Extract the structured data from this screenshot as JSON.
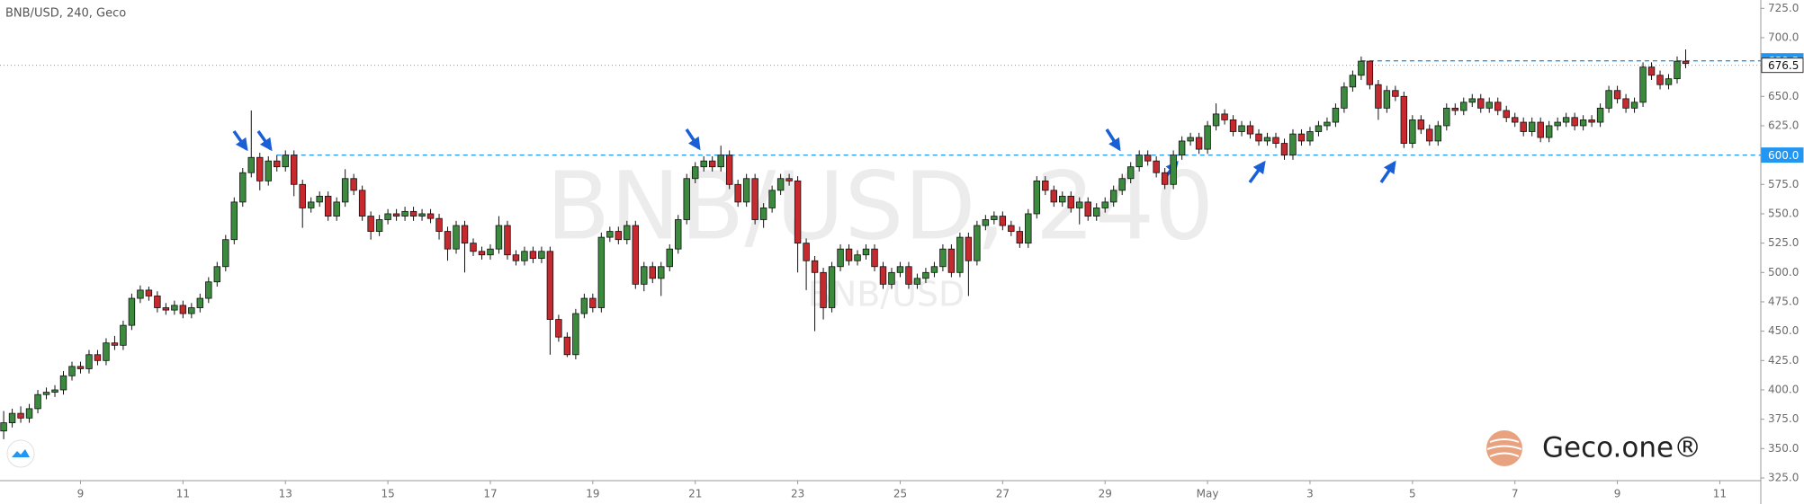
{
  "chart_data": {
    "type": "candlestick",
    "title": "BNB/USD, 240, Geco",
    "watermark": "BNB/USD, 240",
    "watermark_sub": "BNB/USD",
    "brand": "Geco.one®",
    "up_color": "#3b8a3e",
    "down_color": "#c62a2f",
    "level_color": "#2196f3",
    "xlim": [
      -0.43,
      205.8
    ],
    "ylim": [
      322.7,
      732.1
    ],
    "yticks": [
      {
        "value": 325,
        "label": "325.0"
      },
      {
        "value": 350,
        "label": "350.0"
      },
      {
        "value": 375,
        "label": "375.0"
      },
      {
        "value": 400,
        "label": "400.0"
      },
      {
        "value": 425,
        "label": "425.0"
      },
      {
        "value": 450,
        "label": "450.0"
      },
      {
        "value": 475,
        "label": "475.0"
      },
      {
        "value": 500,
        "label": "500.0"
      },
      {
        "value": 525,
        "label": "525.0"
      },
      {
        "value": 550,
        "label": "550.0"
      },
      {
        "value": 575,
        "label": "575.0"
      },
      {
        "value": 600,
        "label": "600.0"
      },
      {
        "value": 625,
        "label": "625.0"
      },
      {
        "value": 650,
        "label": "650.0"
      },
      {
        "value": 675,
        "label": "675.0"
      },
      {
        "value": 700,
        "label": "700.0"
      },
      {
        "value": 725,
        "label": "725.0"
      }
    ],
    "xticks": [
      {
        "value": 9,
        "label": "9"
      },
      {
        "value": 21,
        "label": "11"
      },
      {
        "value": 33,
        "label": "13"
      },
      {
        "value": 45,
        "label": "15"
      },
      {
        "value": 57,
        "label": "17"
      },
      {
        "value": 69,
        "label": "19"
      },
      {
        "value": 81,
        "label": "21"
      },
      {
        "value": 93,
        "label": "23"
      },
      {
        "value": 105,
        "label": "25"
      },
      {
        "value": 117,
        "label": "27"
      },
      {
        "value": 129,
        "label": "29"
      },
      {
        "value": 141,
        "label": "May"
      },
      {
        "value": 153,
        "label": "3"
      },
      {
        "value": 165,
        "label": "5"
      },
      {
        "value": 177,
        "label": "7"
      },
      {
        "value": 189,
        "label": "9"
      },
      {
        "value": 201,
        "label": "11"
      }
    ],
    "levels": [
      {
        "value": 600,
        "label": "600.0"
      },
      {
        "value": 680.3,
        "label": "680.3"
      }
    ],
    "last_price": {
      "value": 676.5,
      "label": "676.5"
    },
    "candles": [
      [
        365,
        382,
        358,
        372
      ],
      [
        372,
        384,
        368,
        380
      ],
      [
        380,
        386,
        372,
        376
      ],
      [
        376,
        388,
        372,
        384
      ],
      [
        384,
        400,
        380,
        396
      ],
      [
        396,
        402,
        392,
        398
      ],
      [
        398,
        404,
        394,
        400
      ],
      [
        400,
        416,
        396,
        412
      ],
      [
        412,
        424,
        408,
        420
      ],
      [
        420,
        424,
        414,
        418
      ],
      [
        418,
        434,
        414,
        430
      ],
      [
        430,
        434,
        421,
        425
      ],
      [
        425,
        444,
        421,
        440
      ],
      [
        440,
        446,
        434,
        438
      ],
      [
        438,
        459,
        434,
        455
      ],
      [
        455,
        482,
        451,
        478
      ],
      [
        478,
        489,
        474,
        485
      ],
      [
        485,
        488,
        476,
        480
      ],
      [
        480,
        484,
        466,
        470
      ],
      [
        470,
        474,
        464,
        468
      ],
      [
        468,
        476,
        464,
        472
      ],
      [
        472,
        476,
        461,
        465
      ],
      [
        465,
        474,
        461,
        470
      ],
      [
        470,
        482,
        466,
        478
      ],
      [
        478,
        496,
        474,
        492
      ],
      [
        492,
        509,
        488,
        505
      ],
      [
        505,
        532,
        501,
        528
      ],
      [
        528,
        564,
        524,
        560
      ],
      [
        560,
        589,
        556,
        585
      ],
      [
        585,
        638,
        581,
        598
      ],
      [
        598,
        602,
        570,
        578
      ],
      [
        578,
        599,
        574,
        595
      ],
      [
        595,
        600,
        586,
        590
      ],
      [
        590,
        604,
        586,
        600
      ],
      [
        600,
        604,
        565,
        575
      ],
      [
        575,
        579,
        538,
        555
      ],
      [
        555,
        564,
        551,
        560
      ],
      [
        560,
        569,
        556,
        565
      ],
      [
        565,
        569,
        544,
        548
      ],
      [
        548,
        564,
        544,
        560
      ],
      [
        560,
        588,
        556,
        580
      ],
      [
        580,
        584,
        566,
        570
      ],
      [
        570,
        574,
        544,
        548
      ],
      [
        548,
        552,
        528,
        535
      ],
      [
        535,
        549,
        531,
        545
      ],
      [
        545,
        554,
        541,
        550
      ],
      [
        550,
        554,
        544,
        548
      ],
      [
        548,
        556,
        544,
        552
      ],
      [
        552,
        556,
        544,
        548
      ],
      [
        548,
        554,
        544,
        550
      ],
      [
        550,
        554,
        542,
        546
      ],
      [
        546,
        550,
        528,
        535
      ],
      [
        535,
        539,
        510,
        520
      ],
      [
        520,
        544,
        516,
        540
      ],
      [
        540,
        544,
        500,
        525
      ],
      [
        525,
        529,
        514,
        518
      ],
      [
        518,
        522,
        511,
        515
      ],
      [
        515,
        524,
        511,
        520
      ],
      [
        520,
        548,
        516,
        540
      ],
      [
        540,
        544,
        511,
        515
      ],
      [
        515,
        519,
        506,
        510
      ],
      [
        510,
        522,
        506,
        518
      ],
      [
        518,
        522,
        508,
        512
      ],
      [
        512,
        522,
        508,
        518
      ],
      [
        518,
        522,
        430,
        460
      ],
      [
        460,
        464,
        441,
        445
      ],
      [
        445,
        449,
        428,
        430
      ],
      [
        430,
        469,
        426,
        465
      ],
      [
        465,
        482,
        461,
        478
      ],
      [
        478,
        482,
        466,
        470
      ],
      [
        470,
        534,
        466,
        530
      ],
      [
        530,
        539,
        526,
        535
      ],
      [
        535,
        539,
        524,
        528
      ],
      [
        528,
        544,
        524,
        540
      ],
      [
        540,
        544,
        486,
        490
      ],
      [
        490,
        509,
        484,
        505
      ],
      [
        505,
        509,
        491,
        495
      ],
      [
        495,
        509,
        480,
        505
      ],
      [
        505,
        524,
        501,
        520
      ],
      [
        520,
        549,
        516,
        545
      ],
      [
        545,
        584,
        541,
        580
      ],
      [
        580,
        594,
        576,
        590
      ],
      [
        590,
        599,
        586,
        595
      ],
      [
        595,
        599,
        586,
        590
      ],
      [
        590,
        608,
        586,
        600
      ],
      [
        600,
        604,
        571,
        575
      ],
      [
        575,
        579,
        556,
        560
      ],
      [
        560,
        584,
        556,
        580
      ],
      [
        580,
        584,
        541,
        545
      ],
      [
        545,
        559,
        538,
        555
      ],
      [
        555,
        574,
        551,
        570
      ],
      [
        570,
        584,
        566,
        580
      ],
      [
        580,
        584,
        574,
        578
      ],
      [
        578,
        582,
        500,
        525
      ],
      [
        525,
        529,
        485,
        510
      ],
      [
        510,
        514,
        450,
        500
      ],
      [
        500,
        504,
        460,
        470
      ],
      [
        470,
        509,
        466,
        505
      ],
      [
        505,
        524,
        501,
        520
      ],
      [
        520,
        524,
        506,
        510
      ],
      [
        510,
        519,
        506,
        515
      ],
      [
        515,
        524,
        511,
        520
      ],
      [
        520,
        524,
        501,
        505
      ],
      [
        505,
        509,
        486,
        490
      ],
      [
        490,
        504,
        486,
        500
      ],
      [
        500,
        509,
        496,
        505
      ],
      [
        505,
        509,
        486,
        490
      ],
      [
        490,
        499,
        486,
        495
      ],
      [
        495,
        504,
        491,
        500
      ],
      [
        500,
        509,
        496,
        505
      ],
      [
        505,
        524,
        501,
        520
      ],
      [
        520,
        524,
        496,
        500
      ],
      [
        500,
        534,
        496,
        530
      ],
      [
        530,
        534,
        480,
        510
      ],
      [
        510,
        544,
        506,
        540
      ],
      [
        540,
        549,
        536,
        545
      ],
      [
        545,
        552,
        541,
        548
      ],
      [
        548,
        552,
        536,
        540
      ],
      [
        540,
        544,
        531,
        535
      ],
      [
        535,
        539,
        521,
        525
      ],
      [
        525,
        554,
        521,
        550
      ],
      [
        550,
        582,
        546,
        578
      ],
      [
        578,
        582,
        566,
        570
      ],
      [
        570,
        574,
        556,
        560
      ],
      [
        560,
        569,
        556,
        565
      ],
      [
        565,
        569,
        551,
        555
      ],
      [
        555,
        564,
        541,
        560
      ],
      [
        560,
        564,
        544,
        548
      ],
      [
        548,
        559,
        544,
        555
      ],
      [
        555,
        564,
        551,
        560
      ],
      [
        560,
        574,
        556,
        570
      ],
      [
        570,
        584,
        566,
        580
      ],
      [
        580,
        594,
        576,
        590
      ],
      [
        590,
        604,
        586,
        600
      ],
      [
        600,
        604,
        591,
        595
      ],
      [
        595,
        599,
        581,
        585
      ],
      [
        585,
        589,
        571,
        575
      ],
      [
        575,
        604,
        571,
        600
      ],
      [
        600,
        616,
        596,
        612
      ],
      [
        612,
        619,
        608,
        615
      ],
      [
        615,
        619,
        601,
        605
      ],
      [
        605,
        629,
        601,
        625
      ],
      [
        625,
        644,
        621,
        635
      ],
      [
        635,
        639,
        626,
        630
      ],
      [
        630,
        634,
        616,
        620
      ],
      [
        620,
        629,
        616,
        625
      ],
      [
        625,
        629,
        614,
        618
      ],
      [
        618,
        622,
        608,
        612
      ],
      [
        612,
        619,
        608,
        615
      ],
      [
        615,
        619,
        606,
        610
      ],
      [
        610,
        614,
        596,
        600
      ],
      [
        600,
        622,
        596,
        618
      ],
      [
        618,
        622,
        608,
        612
      ],
      [
        612,
        624,
        608,
        620
      ],
      [
        620,
        629,
        616,
        625
      ],
      [
        625,
        632,
        621,
        628
      ],
      [
        628,
        644,
        624,
        640
      ],
      [
        640,
        662,
        636,
        658
      ],
      [
        658,
        672,
        654,
        668
      ],
      [
        668,
        684,
        664,
        680
      ],
      [
        680,
        680,
        656,
        660
      ],
      [
        660,
        664,
        630,
        640
      ],
      [
        640,
        659,
        636,
        655
      ],
      [
        655,
        659,
        646,
        650
      ],
      [
        650,
        654,
        606,
        610
      ],
      [
        610,
        634,
        606,
        630
      ],
      [
        630,
        634,
        618,
        622
      ],
      [
        622,
        626,
        608,
        612
      ],
      [
        612,
        629,
        608,
        625
      ],
      [
        625,
        644,
        621,
        640
      ],
      [
        640,
        644,
        634,
        638
      ],
      [
        638,
        649,
        634,
        645
      ],
      [
        645,
        652,
        641,
        648
      ],
      [
        648,
        652,
        636,
        640
      ],
      [
        640,
        649,
        636,
        645
      ],
      [
        645,
        649,
        634,
        638
      ],
      [
        638,
        642,
        628,
        632
      ],
      [
        632,
        636,
        624,
        628
      ],
      [
        628,
        632,
        616,
        620
      ],
      [
        620,
        632,
        616,
        628
      ],
      [
        628,
        632,
        611,
        615
      ],
      [
        615,
        629,
        611,
        625
      ],
      [
        625,
        632,
        621,
        628
      ],
      [
        628,
        636,
        624,
        632
      ],
      [
        632,
        636,
        621,
        625
      ],
      [
        625,
        634,
        621,
        630
      ],
      [
        630,
        634,
        624,
        628
      ],
      [
        628,
        644,
        624,
        640
      ],
      [
        640,
        659,
        636,
        655
      ],
      [
        655,
        659,
        644,
        648
      ],
      [
        648,
        652,
        636,
        640
      ],
      [
        640,
        649,
        636,
        645
      ],
      [
        645,
        679,
        641,
        675
      ],
      [
        675,
        679,
        664,
        668
      ],
      [
        668,
        672,
        656,
        660
      ],
      [
        660,
        669,
        656,
        665
      ],
      [
        665,
        684,
        661,
        680
      ],
      [
        680,
        690,
        674,
        678
      ]
    ]
  }
}
